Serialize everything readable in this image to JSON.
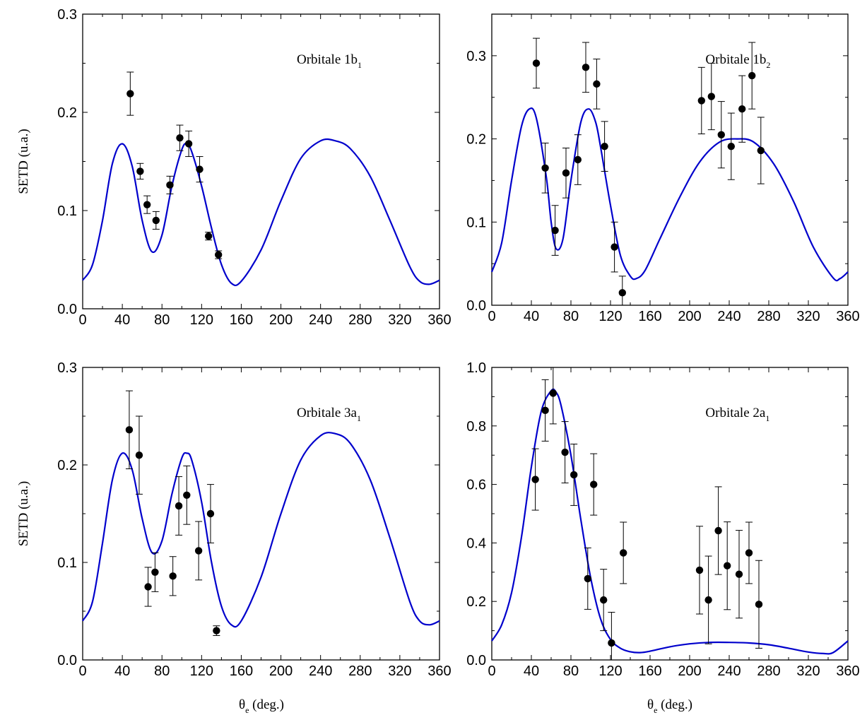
{
  "x_axis_label": {
    "symbol": "θ",
    "subscript": "e",
    "rest": " (deg.)"
  },
  "chart_data": [
    {
      "type": "scatter",
      "panel": "top-left",
      "ylabel": "SETD (u.a.)",
      "annotation": {
        "text": "Orbitale 1b",
        "subscript": "1"
      },
      "xlim": [
        0,
        360
      ],
      "ylim": [
        0,
        0.3
      ],
      "xticks": [
        0,
        40,
        80,
        120,
        160,
        200,
        240,
        280,
        320,
        360
      ],
      "yticks": [
        0.0,
        0.1,
        0.2,
        0.3
      ],
      "ytick_labels": [
        "0.0",
        "0.1",
        "0.2",
        "0.3"
      ],
      "line_color": "#0000cc",
      "curve": {
        "x": [
          0,
          10,
          20,
          30,
          40,
          50,
          60,
          70,
          80,
          90,
          100,
          105,
          110,
          120,
          130,
          140,
          150,
          160,
          180,
          200,
          220,
          240,
          255,
          270,
          290,
          310,
          330,
          340,
          350,
          360
        ],
        "y": [
          0.029,
          0.045,
          0.09,
          0.148,
          0.168,
          0.145,
          0.09,
          0.058,
          0.075,
          0.125,
          0.162,
          0.168,
          0.16,
          0.125,
          0.082,
          0.045,
          0.026,
          0.028,
          0.06,
          0.11,
          0.153,
          0.171,
          0.171,
          0.163,
          0.135,
          0.09,
          0.043,
          0.028,
          0.025,
          0.029
        ]
      },
      "points": {
        "x": [
          48,
          58,
          65,
          74,
          88,
          98,
          107,
          118,
          127,
          137
        ],
        "y": [
          0.219,
          0.14,
          0.106,
          0.09,
          0.126,
          0.174,
          0.168,
          0.142,
          0.074,
          0.055
        ],
        "err": [
          0.022,
          0.008,
          0.009,
          0.009,
          0.009,
          0.013,
          0.013,
          0.013,
          0.004,
          0.004
        ]
      }
    },
    {
      "type": "scatter",
      "panel": "top-right",
      "ylabel": "",
      "annotation": {
        "text": "Orbitale 1b",
        "subscript": "2"
      },
      "xlim": [
        0,
        360
      ],
      "ylim": [
        0,
        0.35
      ],
      "xticks": [
        0,
        40,
        80,
        120,
        160,
        200,
        240,
        280,
        320,
        360
      ],
      "yticks": [
        0.0,
        0.1,
        0.2,
        0.3
      ],
      "ytick_labels": [
        "0.0",
        "0.1",
        "0.2",
        "0.3"
      ],
      "line_color": "#0000cc",
      "curve": {
        "x": [
          0,
          10,
          20,
          30,
          38,
          45,
          55,
          60,
          65,
          72,
          80,
          90,
          98,
          105,
          110,
          120,
          130,
          140,
          146,
          155,
          170,
          190,
          210,
          230,
          248,
          265,
          285,
          305,
          325,
          345,
          352,
          360
        ],
        "y": [
          0.04,
          0.075,
          0.15,
          0.215,
          0.236,
          0.225,
          0.155,
          0.1,
          0.068,
          0.08,
          0.15,
          0.22,
          0.236,
          0.22,
          0.19,
          0.12,
          0.06,
          0.035,
          0.032,
          0.042,
          0.08,
          0.13,
          0.172,
          0.196,
          0.2,
          0.196,
          0.17,
          0.125,
          0.07,
          0.033,
          0.032,
          0.04
        ]
      },
      "points": {
        "x": [
          45,
          54,
          64,
          75,
          87,
          95,
          106,
          114,
          124,
          132,
          212,
          222,
          232,
          242,
          253,
          263,
          272
        ],
        "y": [
          0.291,
          0.165,
          0.09,
          0.159,
          0.175,
          0.286,
          0.266,
          0.191,
          0.07,
          0.015,
          0.246,
          0.251,
          0.205,
          0.191,
          0.236,
          0.276,
          0.186
        ],
        "err": [
          0.03,
          0.03,
          0.03,
          0.03,
          0.03,
          0.03,
          0.03,
          0.03,
          0.03,
          0.02,
          0.04,
          0.04,
          0.04,
          0.04,
          0.04,
          0.04,
          0.04
        ]
      }
    },
    {
      "type": "scatter",
      "panel": "bottom-left",
      "ylabel": "SETD (u.a.)",
      "annotation": {
        "text": "Orbitale 3a",
        "subscript": "1"
      },
      "xlim": [
        0,
        360
      ],
      "ylim": [
        0,
        0.3
      ],
      "xticks": [
        0,
        40,
        80,
        120,
        160,
        200,
        240,
        280,
        320,
        360
      ],
      "yticks": [
        0.0,
        0.1,
        0.2,
        0.3
      ],
      "ytick_labels": [
        "0.0",
        "0.1",
        "0.2",
        "0.3"
      ],
      "line_color": "#0000cc",
      "curve": {
        "x": [
          0,
          10,
          20,
          30,
          40,
          50,
          60,
          70,
          80,
          90,
          100,
          105,
          110,
          120,
          130,
          140,
          150,
          160,
          180,
          200,
          220,
          240,
          255,
          270,
          290,
          310,
          330,
          340,
          350,
          360
        ],
        "y": [
          0.04,
          0.06,
          0.12,
          0.185,
          0.212,
          0.195,
          0.145,
          0.11,
          0.122,
          0.17,
          0.207,
          0.212,
          0.205,
          0.162,
          0.1,
          0.055,
          0.036,
          0.04,
          0.085,
          0.15,
          0.205,
          0.23,
          0.232,
          0.222,
          0.185,
          0.125,
          0.06,
          0.04,
          0.036,
          0.04
        ]
      },
      "points": {
        "x": [
          47,
          57,
          66,
          73,
          91,
          97,
          105,
          117,
          129,
          135
        ],
        "y": [
          0.236,
          0.21,
          0.075,
          0.09,
          0.086,
          0.158,
          0.169,
          0.112,
          0.15,
          0.03
        ],
        "err": [
          0.04,
          0.04,
          0.02,
          0.02,
          0.02,
          0.03,
          0.03,
          0.03,
          0.03,
          0.005
        ]
      }
    },
    {
      "type": "scatter",
      "panel": "bottom-right",
      "ylabel": "",
      "annotation": {
        "text": "Orbitale 2a",
        "subscript": "1"
      },
      "xlim": [
        0,
        360
      ],
      "ylim": [
        0,
        1.0
      ],
      "xticks": [
        0,
        40,
        80,
        120,
        160,
        200,
        240,
        280,
        320,
        360
      ],
      "yticks": [
        0.0,
        0.2,
        0.4,
        0.6,
        0.8,
        1.0
      ],
      "ytick_labels": [
        "0.0",
        "0.2",
        "0.4",
        "0.6",
        "0.8",
        "1.0"
      ],
      "line_color": "#0000cc",
      "curve": {
        "x": [
          0,
          10,
          20,
          30,
          40,
          50,
          60,
          65,
          70,
          80,
          90,
          100,
          110,
          120,
          130,
          140,
          150,
          160,
          180,
          200,
          220,
          240,
          260,
          280,
          300,
          320,
          335,
          345,
          360
        ],
        "y": [
          0.065,
          0.12,
          0.23,
          0.42,
          0.66,
          0.85,
          0.92,
          0.915,
          0.87,
          0.7,
          0.48,
          0.28,
          0.14,
          0.07,
          0.04,
          0.028,
          0.025,
          0.03,
          0.045,
          0.055,
          0.06,
          0.06,
          0.058,
          0.052,
          0.04,
          0.027,
          0.022,
          0.025,
          0.065
        ]
      },
      "points": {
        "x": [
          44,
          54,
          62,
          74,
          83,
          97,
          103,
          113,
          121,
          133,
          210,
          219,
          229,
          238,
          250,
          260,
          270
        ],
        "y": [
          0.617,
          0.853,
          0.912,
          0.71,
          0.633,
          0.278,
          0.6,
          0.205,
          0.058,
          0.366,
          0.307,
          0.205,
          0.442,
          0.322,
          0.293,
          0.366,
          0.19
        ],
        "err": [
          0.105,
          0.105,
          0.105,
          0.105,
          0.105,
          0.105,
          0.105,
          0.105,
          0.105,
          0.105,
          0.15,
          0.15,
          0.15,
          0.15,
          0.15,
          0.105,
          0.15
        ]
      }
    }
  ]
}
